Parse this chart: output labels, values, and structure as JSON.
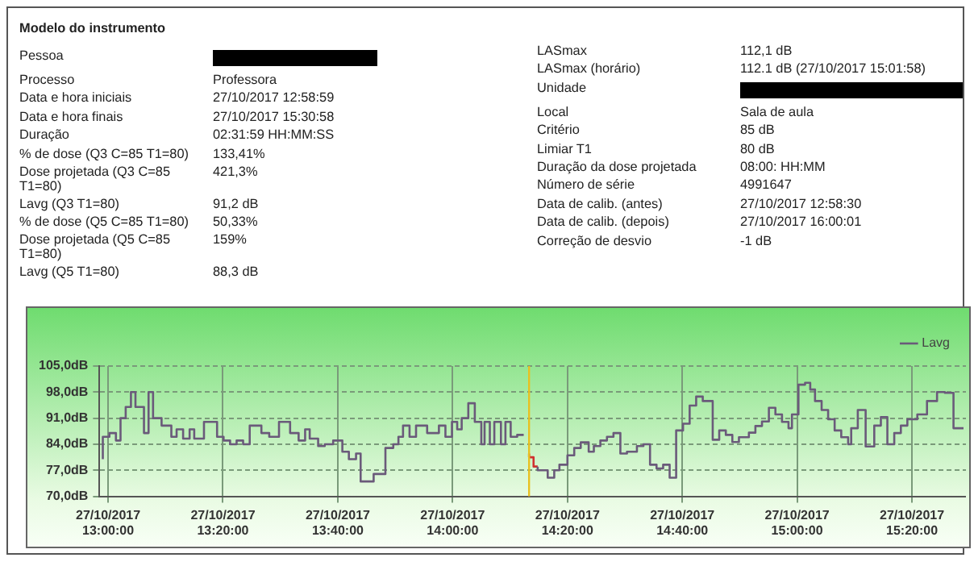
{
  "chart_data": [
    {
      "type": "other",
      "categories": [
        "Modelo do instrumento",
        "Pessoa",
        "Processo",
        "Data e hora iniciais",
        "Data e hora finais",
        "Duração",
        "% de dose (Q3 C=85 T1=80)",
        "Dose projetada (Q3 C=85 T1=80)",
        "Lavg (Q3 T1=80)",
        "% de dose (Q5 C=85 T1=80)",
        "Dose projetada (Q5 C=85 T1=80)",
        "Lavg (Q5 T1=80)"
      ],
      "value_labels": [
        null,
        null,
        "Professora",
        "27/10/2017 12:58:59",
        "27/10/2017 15:30:58",
        "02:31:59 HH:MM:SS",
        "133,41%",
        "421,3%",
        "91,2 dB",
        "50,33%",
        "159%",
        "88,3 dB"
      ]
    },
    {
      "type": "other",
      "categories": [
        "LASmax",
        "LASmax (horário)",
        "Unidade",
        "Local",
        "Critério",
        "Limiar T1",
        "Duração da dose projetada",
        "Número de série",
        "Data de calib. (antes)",
        "Data de calib. (depois)",
        "Correção de desvio"
      ],
      "value_labels": [
        "112,1 dB",
        "112.1 dB (27/10/2017 15:01:58)",
        null,
        "Sala de aula",
        "85 dB",
        "80 dB",
        "08:00: HH:MM",
        "4991647",
        "27/10/2017 12:58:30",
        "27/10/2017 16:00:01",
        "-1 dB"
      ]
    },
    {
      "type": "step",
      "legend": "top right",
      "grid": true,
      "marker": "none",
      "xlim": [
        "2017-10-27T12:58:30",
        "2017-10-27T15:29:24"
      ],
      "ylim": [
        70,
        105
      ],
      "xticks": [
        {
          "value": "2017-10-27T13:00",
          "label": "27/10/2017 13:00:00"
        },
        {
          "value": "2017-10-27T13:20",
          "label": "27/10/2017 13:20:00"
        },
        {
          "value": "2017-10-27T13:40",
          "label": "27/10/2017 13:40:00"
        },
        {
          "value": "2017-10-27T14:00",
          "label": "27/10/2017 14:00:00"
        },
        {
          "value": "2017-10-27T14:20",
          "label": "27/10/2017 14:20:00"
        },
        {
          "value": "2017-10-27T14:40",
          "label": "27/10/2017 14:40:00"
        },
        {
          "value": "2017-10-27T15:00",
          "label": "27/10/2017 15:00:00"
        },
        {
          "value": "2017-10-27T15:20",
          "label": "27/10/2017 15:20:00"
        }
      ],
      "yticks": [
        {
          "value": 70,
          "label": "70,0dB"
        },
        {
          "value": 77,
          "label": "77,0dB"
        },
        {
          "value": 84,
          "label": "84,0dB"
        },
        {
          "value": 91,
          "label": "91,0dB"
        },
        {
          "value": 98,
          "label": "98,0dB"
        },
        {
          "value": 105,
          "label": "105,0dB"
        }
      ],
      "ref_lines": [
        {
          "axis": "x",
          "value": "2017-10-27T14:13:19",
          "label": null,
          "color": "#e8c020"
        }
      ],
      "series": [
        {
          "name": "Lavg",
          "color": "#6a5a7a",
          "x": [
            "2017-10-27T12:59:05",
            "2017-10-27T13:00:14",
            "2017-10-27T13:01:22",
            "2017-10-27T13:02:10",
            "2017-10-27T13:03:04",
            "2017-10-27T13:03:59",
            "2017-10-27T13:04:46",
            "2017-10-27T13:06:15",
            "2017-10-27T13:07:03",
            "2017-10-27T13:07:50",
            "2017-10-27T13:09:19",
            "2017-10-27T13:11:01",
            "2017-10-27T13:11:56",
            "2017-10-27T13:13:04",
            "2017-10-27T13:14:12",
            "2017-10-27T13:15:00",
            "2017-10-27T13:16:42",
            "2017-10-27T13:18:59",
            "2017-10-27T13:20:07",
            "2017-10-27T13:21:15",
            "2017-10-27T13:22:23",
            "2017-10-27T13:23:31",
            "2017-10-27T13:24:40",
            "2017-10-27T13:26:42",
            "2017-10-27T13:28:04",
            "2017-10-27T13:29:46",
            "2017-10-27T13:31:42",
            "2017-10-27T13:33:11",
            "2017-10-27T13:34:19",
            "2017-10-27T13:35:07",
            "2017-10-27T13:36:35",
            "2017-10-27T13:37:44",
            "2017-10-27T13:39:12",
            "2017-10-27T13:40:48",
            "2017-10-27T13:41:56",
            "2017-10-27T13:43:11",
            "2017-10-27T13:43:59",
            "2017-10-27T13:46:15",
            "2017-10-27T13:48:18",
            "2017-10-27T13:49:40",
            "2017-10-27T13:50:34",
            "2017-10-27T13:51:22",
            "2017-10-27T13:52:30",
            "2017-10-27T13:53:38",
            "2017-10-27T13:55:34",
            "2017-10-27T13:57:37",
            "2017-10-27T13:58:45",
            "2017-10-27T13:59:53",
            "2017-10-27T14:00:48",
            "2017-10-27T14:01:35",
            "2017-10-27T14:02:44",
            "2017-10-27T14:03:52",
            "2017-10-27T14:05:00",
            "2017-10-27T14:05:34",
            "2017-10-27T14:06:29",
            "2017-10-27T14:07:16",
            "2017-10-27T14:08:25",
            "2017-10-27T14:09:12",
            "2017-10-27T14:10:07",
            "2017-10-27T14:11:15",
            "2017-10-27T14:12:23",
            "2017-10-27T14:13:19",
            "2017-10-27T14:14:49",
            "2017-10-27T14:16:34",
            "2017-10-27T14:17:42",
            "2017-10-27T14:18:36",
            "2017-10-27T14:20:00",
            "2017-10-27T14:21:11",
            "2017-10-27T14:22:19",
            "2017-10-27T14:23:42",
            "2017-10-27T14:24:36",
            "2017-10-27T14:25:44",
            "2017-10-27T14:26:53",
            "2017-10-27T14:28:01",
            "2017-10-27T14:29:13",
            "2017-10-27T14:30:22",
            "2017-10-27T14:32:06",
            "2017-10-27T14:33:14",
            "2017-10-27T14:34:23",
            "2017-10-27T14:35:31",
            "2017-10-27T14:36:40",
            "2017-10-27T14:37:48",
            "2017-10-27T14:38:56",
            "2017-10-27T14:40:08",
            "2017-10-27T14:41:17",
            "2017-10-27T14:42:25",
            "2017-10-27T14:43:34",
            "2017-10-27T14:45:18",
            "2017-10-27T14:46:26",
            "2017-10-27T14:47:35",
            "2017-10-27T14:48:43",
            "2017-10-27T14:49:52",
            "2017-10-27T14:51:36",
            "2017-10-27T14:52:44",
            "2017-10-27T14:53:53",
            "2017-10-27T14:55:05",
            "2017-10-27T14:56:13",
            "2017-10-27T14:57:22",
            "2017-10-27T14:58:30",
            "2017-10-27T14:59:06",
            "2017-10-27T15:00:14",
            "2017-10-27T15:01:23",
            "2017-10-27T15:02:17",
            "2017-10-27T15:03:07",
            "2017-10-27T15:04:16",
            "2017-10-27T15:05:24",
            "2017-10-27T15:06:32",
            "2017-10-27T15:07:41",
            "2017-10-27T15:08:53",
            "2017-10-27T15:09:25",
            "2017-10-27T15:10:34",
            "2017-10-27T15:11:56",
            "2017-10-27T15:13:26",
            "2017-10-27T15:14:35",
            "2017-10-27T15:15:43",
            "2017-10-27T15:16:55",
            "2017-10-27T15:18:04",
            "2017-10-27T15:19:12",
            "2017-10-27T15:20:56",
            "2017-10-27T15:22:37",
            "2017-10-27T15:24:22",
            "2017-10-27T15:25:44",
            "2017-10-27T15:27:14",
            "2017-10-27T15:28:01",
            "2017-10-27T15:28:59"
          ],
          "values": [
            80,
            86,
            87,
            85,
            91,
            94,
            98,
            94,
            87,
            98,
            91,
            89,
            86,
            88,
            85.5,
            88,
            85.5,
            90,
            86,
            85,
            84,
            85,
            84,
            89,
            87,
            86,
            90,
            87,
            85,
            88,
            85.5,
            83.5,
            84,
            85,
            82,
            80,
            81.5,
            74,
            76,
            83,
            84,
            86,
            89,
            86,
            89,
            87,
            89,
            86,
            90,
            88,
            91,
            95,
            90,
            84,
            90,
            84,
            90,
            84,
            90,
            86,
            86.5,
            null,
            78,
            77,
            75,
            77,
            78.5,
            81,
            83,
            84.5,
            82,
            83.5,
            85,
            86,
            87,
            81.5,
            82,
            83.5,
            84,
            78.5,
            77.5,
            78.5,
            75,
            87.7,
            89.5,
            94.4,
            96.8,
            95.6,
            85.2,
            87.7,
            86.5,
            84.6,
            85.9,
            87.1,
            88.9,
            90.1,
            93.8,
            92,
            90,
            88.3,
            92,
            100,
            100.5,
            98.7,
            95.6,
            93.2,
            90.7,
            87.7,
            85.9,
            84,
            88.3,
            93.2,
            83.4,
            89,
            91.3,
            84,
            87,
            89,
            90.7,
            92,
            95.6,
            98,
            97.8,
            88.3,
            88.3
          ]
        },
        {
          "color": "#d03030",
          "x": [
            "2017-10-27T14:13:19",
            "2017-10-27T14:14:06",
            "2017-10-27T14:14:49"
          ],
          "values": [
            81.5,
            80.5,
            78
          ]
        }
      ]
    }
  ]
}
